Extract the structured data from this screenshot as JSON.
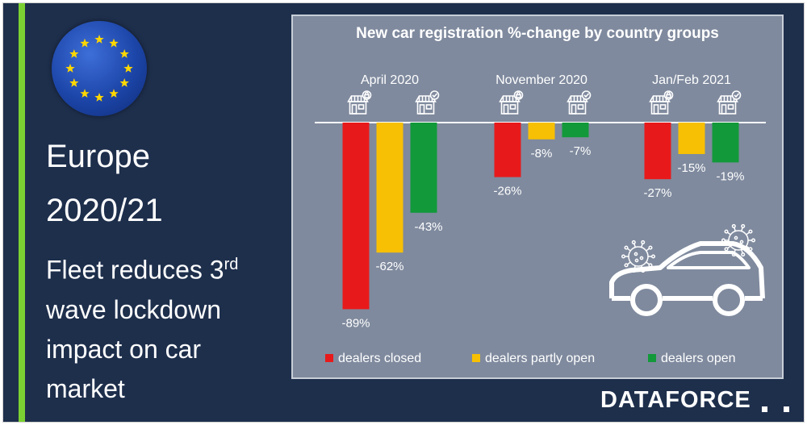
{
  "left": {
    "line1": "Europe",
    "line2": "2020/21",
    "subtitle_pre": "Fleet reduces 3",
    "subtitle_sup": "rd",
    "subtitle_post": " wave lockdown impact on car market"
  },
  "brand": {
    "logo": "DATAFORCE"
  },
  "colors": {
    "closed": "#e8191b",
    "partly": "#f7c004",
    "open": "#12993a",
    "background": "#1e2f4c",
    "panel": "#7f8a9e",
    "accent": "#7bd132"
  },
  "icons": [
    "eu-flag-icon",
    "shop-lock-icon",
    "shop-check-icon",
    "car-icon",
    "virus-icon"
  ],
  "chart_data": {
    "type": "bar",
    "title": "New car registration %-change by country groups",
    "categories": [
      "April 2020",
      "November 2020",
      "Jan/Feb 2021"
    ],
    "series": [
      {
        "name": "dealers closed",
        "values": [
          -89,
          -26,
          -27
        ]
      },
      {
        "name": "dealers partly open",
        "values": [
          -62,
          -8,
          -15
        ]
      },
      {
        "name": "dealers open",
        "values": [
          -43,
          -7,
          -19
        ]
      }
    ],
    "value_labels": [
      [
        "-89%",
        "-62%",
        "-43%"
      ],
      [
        "-26%",
        "-8%",
        "-7%"
      ],
      [
        "-27%",
        "-15%",
        "-19%"
      ]
    ],
    "legend": [
      "dealers closed",
      "dealers partly open",
      "dealers open"
    ],
    "legend_position": "bottom",
    "ylim": [
      -100,
      0
    ],
    "grid": false
  }
}
